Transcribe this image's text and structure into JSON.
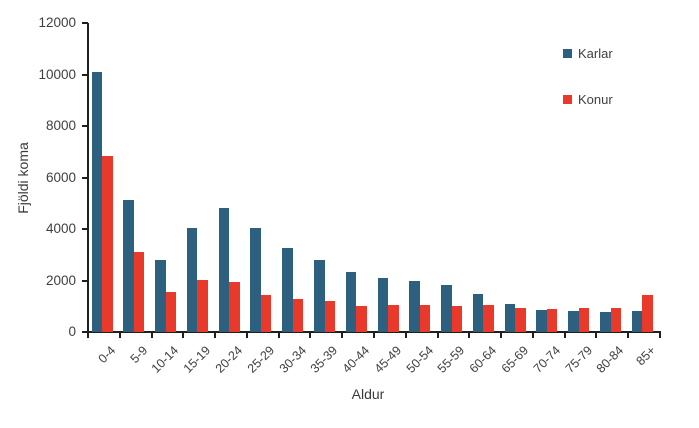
{
  "chart_data": {
    "type": "bar",
    "title": "",
    "xlabel": "Aldur",
    "ylabel": "Fjöldi koma",
    "ylim": [
      0,
      12000
    ],
    "yticks": [
      0,
      2000,
      4000,
      6000,
      8000,
      10000,
      12000
    ],
    "grid": false,
    "legend_position": "right-top",
    "categories": [
      "0-4",
      "5-9",
      "10-14",
      "15-19",
      "20-24",
      "25-29",
      "30-34",
      "35-39",
      "40-44",
      "45-49",
      "50-54",
      "55-59",
      "60-64",
      "65-69",
      "70-74",
      "75-79",
      "80-84",
      "85+"
    ],
    "series": [
      {
        "name": "Karlar",
        "color": "#2D5F7E",
        "values": [
          10100,
          5130,
          2800,
          4030,
          4800,
          4030,
          3280,
          2790,
          2330,
          2080,
          1990,
          1830,
          1460,
          1090,
          860,
          810,
          770,
          820
        ]
      },
      {
        "name": "Konur",
        "color": "#E8392B",
        "values": [
          6820,
          3120,
          1550,
          2010,
          1950,
          1440,
          1280,
          1200,
          1000,
          1030,
          1050,
          1020,
          1030,
          950,
          910,
          930,
          950,
          1430
        ]
      }
    ]
  }
}
